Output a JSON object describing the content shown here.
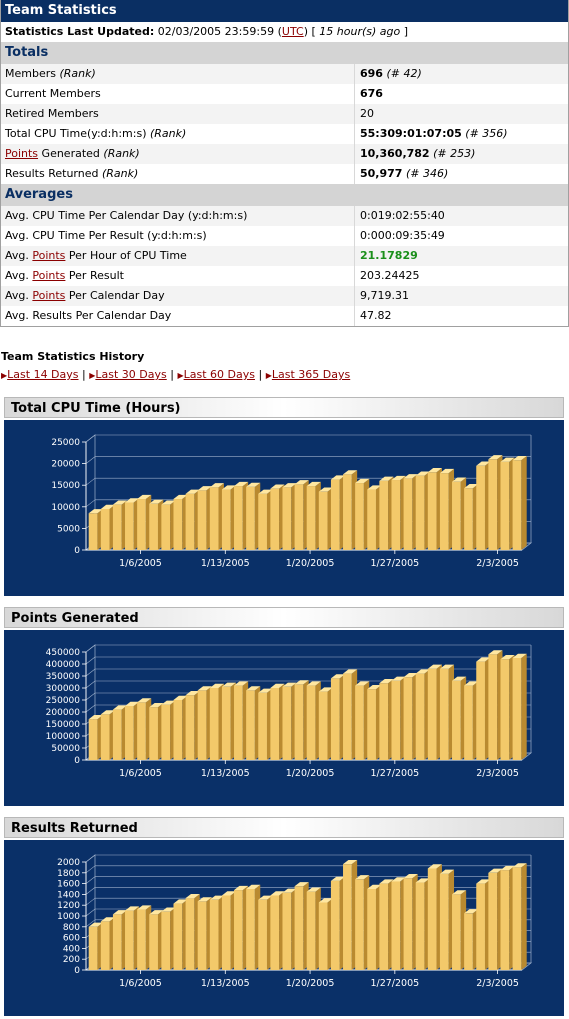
{
  "header": {
    "title": "Team Statistics",
    "updated_label": "Statistics Last Updated:",
    "updated_value": "02/03/2005 23:59:59",
    "tz": "UTC",
    "ago_prefix": "[",
    "ago": "15 hour(s) ago",
    "ago_suffix": "]"
  },
  "totals": {
    "heading": "Totals",
    "rows": [
      {
        "label": "Members",
        "rank": "(Rank)",
        "value": "696",
        "rank_value": "(# 42)"
      },
      {
        "label": "Current Members",
        "value": "676"
      },
      {
        "label": "Retired Members",
        "value": "20"
      },
      {
        "label": "Total CPU Time(y:d:h:m:s)",
        "rank": "(Rank)",
        "value": "55:309:01:07:05",
        "rank_value": "(# 356)"
      },
      {
        "link": "Points",
        "label": " Generated",
        "rank": "(Rank)",
        "value": "10,360,782",
        "rank_value": "(# 253)"
      },
      {
        "label": "Results Returned",
        "rank": "(Rank)",
        "value": "50,977",
        "rank_value": "(# 346)"
      }
    ]
  },
  "averages": {
    "heading": "Averages",
    "rows": [
      {
        "label": "Avg. CPU Time Per Calendar Day (y:d:h:m:s)",
        "value": "0:019:02:55:40"
      },
      {
        "label": "Avg. CPU Time Per Result (y:d:h:m:s)",
        "value": "0:000:09:35:49"
      },
      {
        "label_pre": "Avg. ",
        "link": "Points",
        "label_post": " Per Hour of CPU Time",
        "value": "21.17829"
      },
      {
        "label_pre": "Avg. ",
        "link": "Points",
        "label_post": " Per Result",
        "value": "203.24425"
      },
      {
        "label_pre": "Avg. ",
        "link": "Points",
        "label_post": " Per Calendar Day",
        "value": "9,719.31"
      },
      {
        "label": "Avg. Results Per Calendar Day",
        "value": "47.82"
      }
    ]
  },
  "history": {
    "title": "Team Statistics History",
    "links": [
      "Last 14 Days",
      "Last 30 Days",
      "Last 60 Days",
      "Last 365 Days"
    ],
    "divider": "|"
  },
  "colors": {
    "title_bg": "#0a2f63",
    "chart_bg": "#0a3068",
    "bar_front": "#f3c96a",
    "bar_top": "#ffe7a0",
    "bar_side": "#b98a30",
    "link": "#8b0000",
    "highlight": "#1a8f1a"
  },
  "chart_data": [
    {
      "type": "bar",
      "title": "Total CPU Time (Hours)",
      "ylim": [
        0,
        25000
      ],
      "yticks": [
        0,
        5000,
        10000,
        15000,
        20000,
        25000
      ],
      "xticks": [
        "1/6/2005",
        "1/13/2005",
        "1/20/2005",
        "1/27/2005",
        "2/3/2005"
      ],
      "values": [
        8500,
        9500,
        10500,
        11000,
        11800,
        10700,
        10500,
        11800,
        13000,
        13800,
        14500,
        14000,
        14800,
        14600,
        13000,
        14200,
        14500,
        15200,
        14800,
        13500,
        16300,
        17500,
        15500,
        14000,
        16000,
        16200,
        16600,
        17200,
        18000,
        17800,
        15800,
        14300,
        19500,
        21000,
        20400,
        20800
      ]
    },
    {
      "type": "bar",
      "title": "Points Generated",
      "ylim": [
        0,
        450000
      ],
      "yticks": [
        0,
        50000,
        100000,
        150000,
        200000,
        250000,
        300000,
        350000,
        400000,
        450000
      ],
      "xticks": [
        "1/6/2005",
        "1/13/2005",
        "1/20/2005",
        "1/27/2005",
        "2/3/2005"
      ],
      "values": [
        170000,
        190000,
        210000,
        225000,
        240000,
        220000,
        230000,
        250000,
        270000,
        290000,
        300000,
        305000,
        310000,
        290000,
        280000,
        300000,
        305000,
        315000,
        310000,
        285000,
        340000,
        360000,
        310000,
        295000,
        320000,
        330000,
        345000,
        360000,
        380000,
        380000,
        330000,
        310000,
        410000,
        440000,
        420000,
        425000
      ]
    },
    {
      "type": "bar",
      "title": "Results Returned",
      "ylim": [
        0,
        2000
      ],
      "yticks": [
        0,
        200,
        400,
        600,
        800,
        1000,
        1200,
        1400,
        1600,
        1800,
        2000
      ],
      "xticks": [
        "1/6/2005",
        "1/13/2005",
        "1/20/2005",
        "1/27/2005",
        "2/3/2005"
      ],
      "values": [
        800,
        900,
        1030,
        1100,
        1120,
        1030,
        1080,
        1230,
        1330,
        1270,
        1300,
        1380,
        1480,
        1500,
        1300,
        1380,
        1430,
        1550,
        1450,
        1250,
        1650,
        1960,
        1680,
        1500,
        1600,
        1640,
        1700,
        1620,
        1880,
        1780,
        1400,
        1050,
        1600,
        1800,
        1850,
        1900
      ]
    }
  ]
}
